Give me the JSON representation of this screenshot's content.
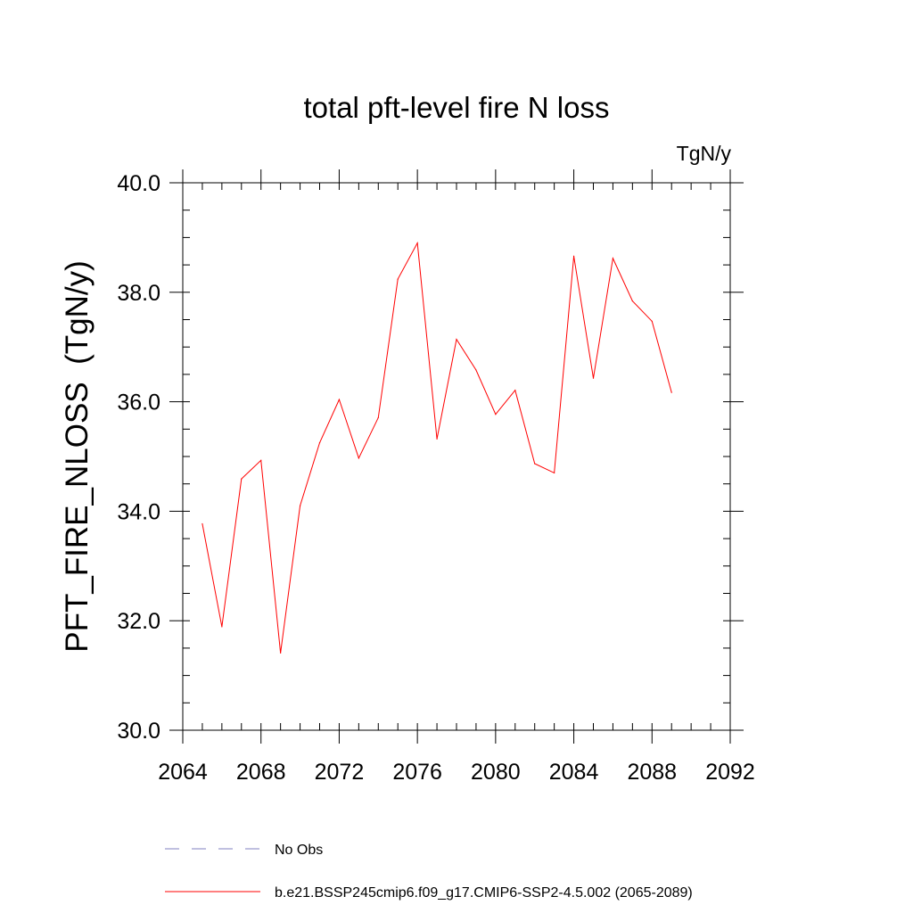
{
  "chart_data": {
    "type": "line",
    "title": "total pft-level fire N loss",
    "units_label": "TgN/y",
    "ylabel": "PFT_FIRE_NLOSS  (TgN/y)",
    "xlabel": "",
    "xlim": [
      2064,
      2092
    ],
    "ylim": [
      30.0,
      40.0
    ],
    "xticks": [
      2064,
      2068,
      2072,
      2076,
      2080,
      2084,
      2088,
      2092
    ],
    "xtick_labels": [
      "2064",
      "2068",
      "2072",
      "2076",
      "2080",
      "2084",
      "2088",
      "2092"
    ],
    "yticks": [
      30.0,
      32.0,
      34.0,
      36.0,
      38.0,
      40.0
    ],
    "ytick_labels": [
      "30.0",
      "32.0",
      "34.0",
      "36.0",
      "38.0",
      "40.0"
    ],
    "x_minor_step": 1,
    "y_minor_step": 0.5,
    "grid": false,
    "legend_position": "bottom",
    "series": [
      {
        "name": "b.e21.BSSP245cmip6.f09_g17.CMIP6-SSP2-4.5.002 (2065-2089)",
        "color": "#ff0000",
        "style": "solid",
        "x": [
          2065,
          2066,
          2067,
          2068,
          2069,
          2070,
          2071,
          2072,
          2073,
          2074,
          2075,
          2076,
          2077,
          2078,
          2079,
          2080,
          2081,
          2082,
          2083,
          2084,
          2085,
          2086,
          2087,
          2088,
          2089
        ],
        "values": [
          33.77,
          31.89,
          34.59,
          34.93,
          31.41,
          34.1,
          35.25,
          36.04,
          34.97,
          35.71,
          38.24,
          38.9,
          35.32,
          37.14,
          36.58,
          35.77,
          36.21,
          34.87,
          34.7,
          38.66,
          36.43,
          38.62,
          37.84,
          37.47,
          36.17
        ]
      },
      {
        "name": "No Obs",
        "color": "#8080c0",
        "style": "dashed",
        "x": [],
        "values": []
      }
    ]
  }
}
